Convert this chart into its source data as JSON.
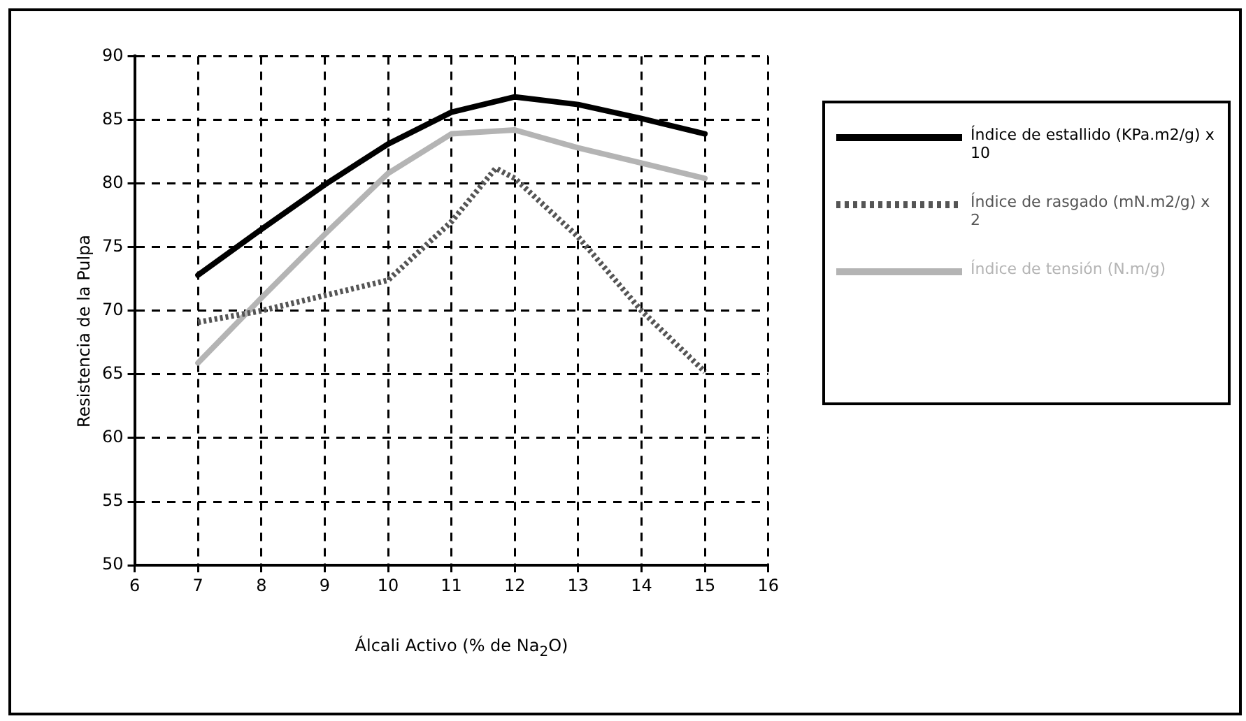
{
  "chart_data": {
    "type": "line",
    "xlabel": "Álcali Activo (% de Na$_{2}$O)",
    "ylabel": "Resistencia de la Pulpa",
    "xlim": [
      6,
      16
    ],
    "xticks": [
      6,
      7,
      8,
      9,
      10,
      11,
      12,
      13,
      14,
      15,
      16
    ],
    "ylim": [
      50,
      90
    ],
    "yticks": [
      50,
      55,
      60,
      65,
      70,
      75,
      80,
      85,
      90
    ],
    "grid": true,
    "legend": "right",
    "marker": "none",
    "series": [
      {
        "name": "Índice de estallido (KPa.m2/g) x 10",
        "color": "#000000",
        "x": [
          7,
          8,
          9,
          10,
          11,
          12,
          13,
          14,
          15
        ],
        "values": [
          72.8,
          76.4,
          79.9,
          83.1,
          85.6,
          86.8,
          86.2,
          85.1,
          83.9
        ]
      },
      {
        "name": "Índice de rasgado (mN.m2/g) x 2",
        "color": "#555555",
        "line_style": "dotted",
        "x": [
          7,
          8,
          9,
          10,
          11,
          11.7,
          12,
          13,
          14,
          15
        ],
        "values": [
          69.1,
          70.0,
          71.2,
          72.4,
          77.0,
          81.2,
          80.4,
          75.8,
          70.0,
          65.2
        ]
      },
      {
        "name": "Índice de tensión (N.m/g)",
        "color": "#b4b4b4",
        "x": [
          7,
          8,
          9,
          10,
          11,
          12,
          13,
          14,
          15
        ],
        "values": [
          65.9,
          71.0,
          76.0,
          80.8,
          83.9,
          84.2,
          82.8,
          81.6,
          80.4
        ]
      }
    ]
  }
}
